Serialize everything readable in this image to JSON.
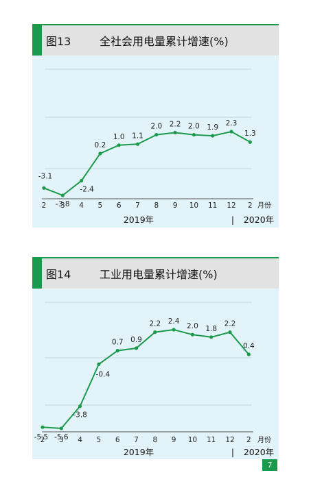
{
  "charts": [
    {
      "figure": "图13",
      "title": "全社会用电量累计增速(%)",
      "year_left": "2019年",
      "year_sep": "|",
      "year_right": "2020年",
      "unit": "月份"
    },
    {
      "figure": "图14",
      "title": "工业用电量累计增速(%)",
      "year_left": "2019年",
      "year_sep": "|",
      "year_right": "2020年",
      "unit": "月份"
    }
  ],
  "page_number": "7",
  "colors": {
    "line": "#1a9a4a",
    "panel_bg": "#e3f3fa",
    "header_bg": "#e2e2e2"
  },
  "chart_data": [
    {
      "type": "line",
      "title": "全社会用电量累计增速(%)",
      "categories": [
        "2",
        "3",
        "4",
        "5",
        "6",
        "7",
        "8",
        "9",
        "10",
        "11",
        "12",
        "2"
      ],
      "values": [
        -3.1,
        -3.8,
        -2.4,
        0.2,
        1.0,
        1.1,
        2.0,
        2.2,
        2.0,
        1.9,
        2.3,
        1.3
      ],
      "labels": [
        "-3.1",
        "-3.8",
        "-2.4",
        "0.2",
        "1.0",
        "1.1",
        "2.0",
        "2.2",
        "2.0",
        "1.9",
        "2.3",
        "1.3"
      ],
      "xlabel": "月份",
      "ylim": [
        -5,
        3
      ],
      "grid": true
    },
    {
      "type": "line",
      "title": "工业用电量累计增速(%)",
      "categories": [
        "2",
        "3",
        "4",
        "5",
        "6",
        "7",
        "8",
        "9",
        "10",
        "11",
        "12",
        "2"
      ],
      "values": [
        -5.5,
        -5.6,
        -3.8,
        -0.4,
        0.7,
        0.9,
        2.2,
        2.4,
        2.0,
        1.8,
        2.2,
        0.4
      ],
      "labels": [
        "-5.5",
        "-5.6",
        "-3.8",
        "-0.4",
        "0.7",
        "0.9",
        "2.2",
        "2.4",
        "2.0",
        "1.8",
        "2.2",
        "0.4"
      ],
      "xlabel": "月份",
      "ylim": [
        -8,
        4
      ],
      "grid": true
    }
  ]
}
